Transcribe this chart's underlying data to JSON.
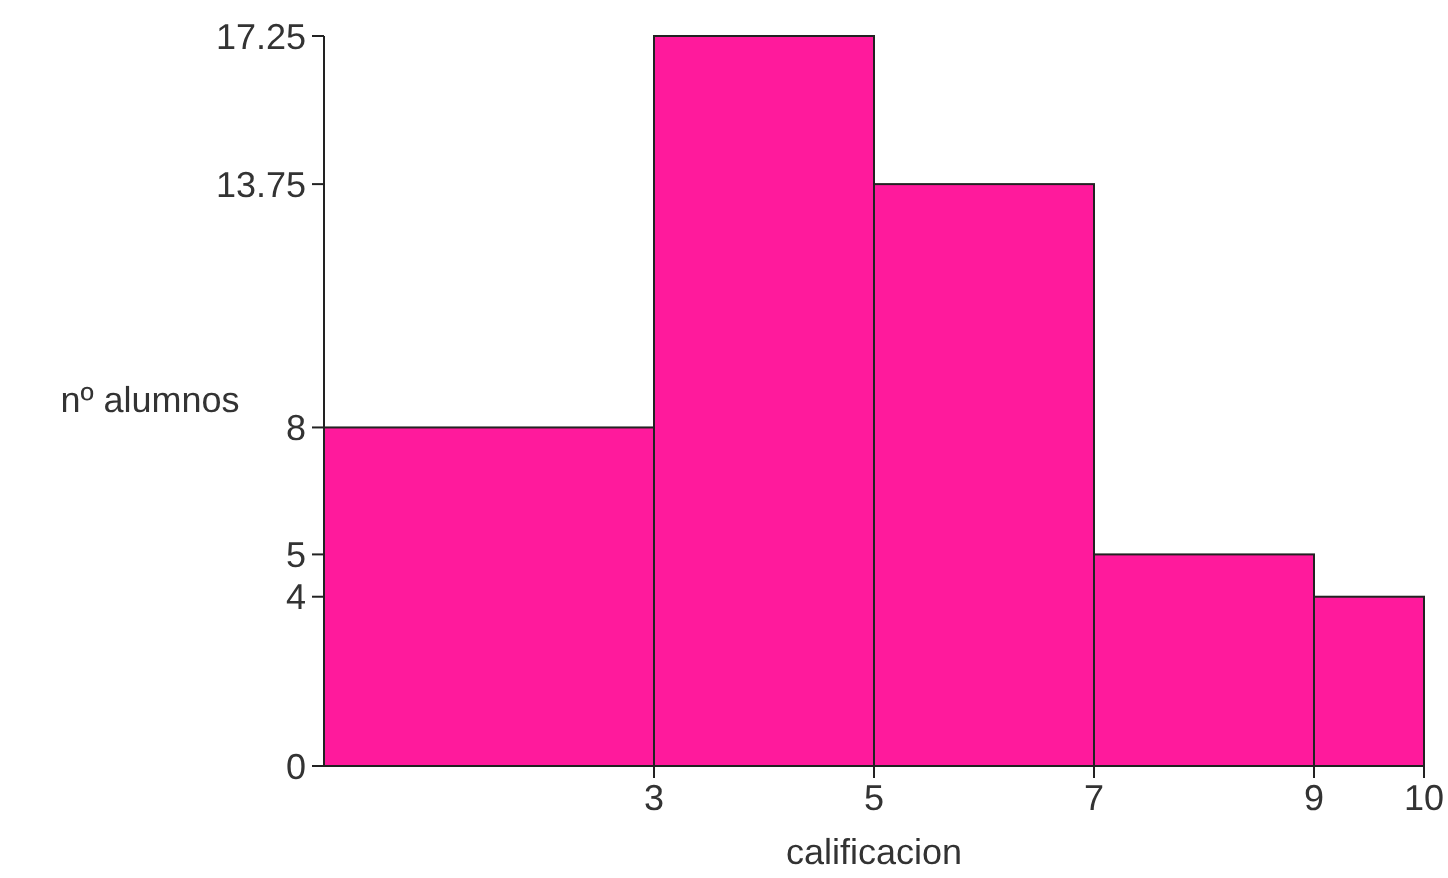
{
  "chart_data": {
    "type": "histogram",
    "xlabel": "calificacion",
    "ylabel": "nº alumnos",
    "bins": [
      0,
      3,
      5,
      7,
      9,
      10
    ],
    "values": [
      8,
      17.25,
      13.75,
      5,
      4
    ],
    "color": "#ff1a9c",
    "xlim": [
      0,
      10
    ],
    "xticks": [
      3,
      5,
      7,
      9,
      10
    ],
    "ylim": [
      0,
      17.25
    ],
    "yticks": [
      0,
      4,
      5,
      8,
      13.75,
      17.25
    ]
  }
}
